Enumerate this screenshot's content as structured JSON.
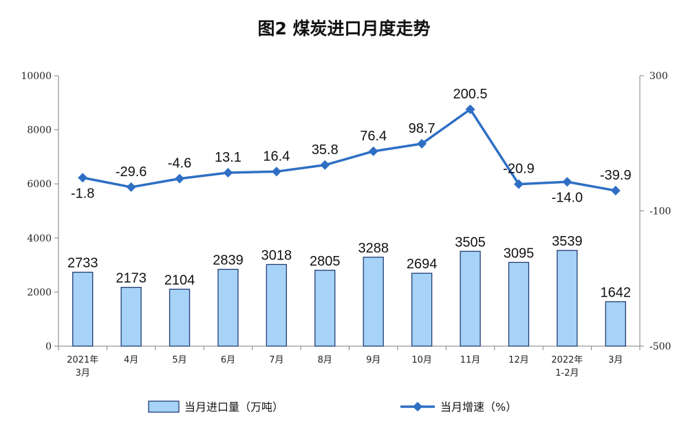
{
  "chart_data": {
    "type": "bar",
    "title": "图2 煤炭进口月度走势",
    "categories": [
      "2021年\n3月",
      "4月",
      "5月",
      "6月",
      "7月",
      "8月",
      "9月",
      "10月",
      "11月",
      "12月",
      "2022年\n1-2月",
      "3月"
    ],
    "series": [
      {
        "name": "当月进口量（万吨）",
        "type": "bar",
        "axis": "left",
        "values": [
          2733,
          2173,
          2104,
          2839,
          3018,
          2805,
          3288,
          2694,
          3505,
          3095,
          3539,
          1642
        ]
      },
      {
        "name": "当月增速（%）",
        "type": "line",
        "axis": "right",
        "values": [
          -1.8,
          -29.6,
          -4.6,
          13.1,
          16.4,
          35.8,
          76.4,
          98.7,
          200.5,
          -20.9,
          -14.0,
          -39.9
        ]
      }
    ],
    "value_labels_bar": [
      "2733",
      "2173",
      "2104",
      "2839",
      "3018",
      "2805",
      "3288",
      "2694",
      "3505",
      "3095",
      "3539",
      "1642"
    ],
    "value_labels_line": [
      "-1.8",
      "-29.6",
      "-4.6",
      "13.1",
      "16.4",
      "35.8",
      "76.4",
      "98.7",
      "200.5",
      "-20.9",
      "-14.0",
      "-39.9"
    ],
    "y_left": {
      "min": 0,
      "max": 10000,
      "ticks": [
        "0",
        "2000",
        "4000",
        "6000",
        "8000",
        "10000"
      ]
    },
    "y_right": {
      "min": -500,
      "max": 300,
      "ticks": [
        "-500",
        "-100",
        "300"
      ]
    },
    "legend_position": "bottom",
    "grid": false,
    "colors": {
      "bar_fill": "#a6d3f7",
      "bar_stroke": "#1f3b73",
      "line": "#2e6fc4"
    }
  }
}
